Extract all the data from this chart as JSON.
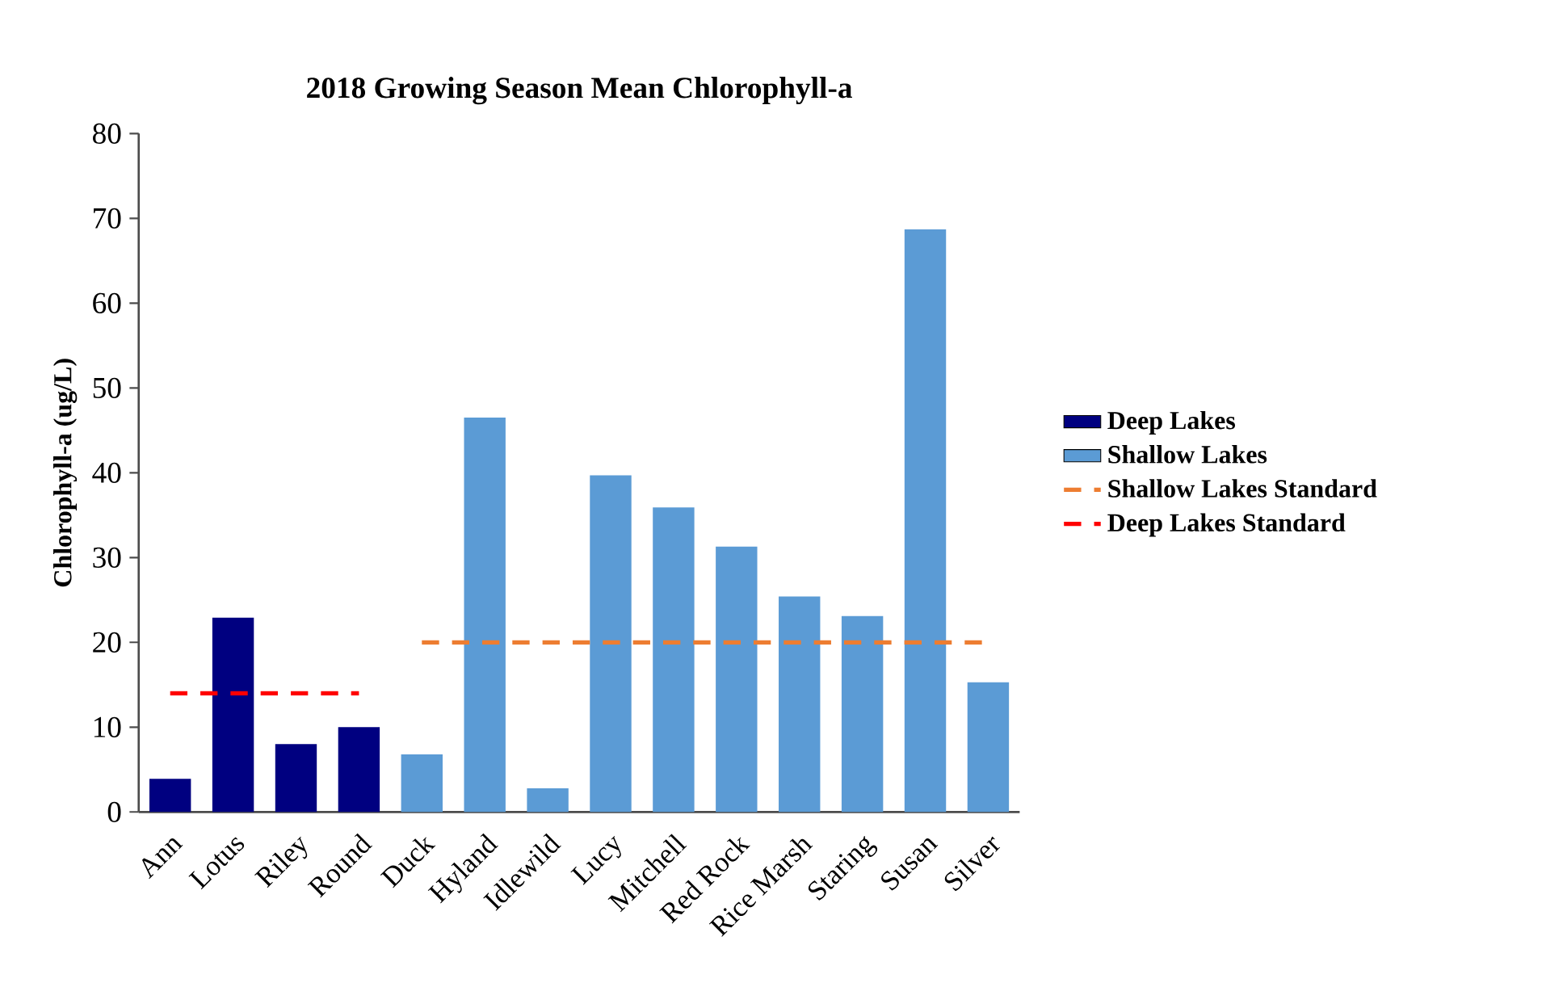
{
  "chart_data": {
    "type": "bar",
    "title": "2018 Growing Season Mean Chlorophyll-a",
    "ylabel": "Chlorophyll-a  (ug/L)",
    "categories": [
      "Ann",
      "Lotus",
      "Riley",
      "Round",
      "Duck",
      "Hyland",
      "Idlewild",
      "Lucy",
      "Mitchell",
      "Red Rock",
      "Rice Marsh",
      "Staring",
      "Susan",
      "Silver"
    ],
    "series": [
      {
        "name": "Deep Lakes",
        "color": "#000080",
        "values": [
          3.9,
          22.9,
          8.0,
          10.0,
          null,
          null,
          null,
          null,
          null,
          null,
          null,
          null,
          null,
          null
        ]
      },
      {
        "name": "Shallow Lakes",
        "color": "#5b9bd5",
        "values": [
          null,
          null,
          null,
          null,
          6.8,
          46.5,
          2.8,
          39.7,
          35.9,
          31.3,
          25.4,
          23.1,
          68.7,
          15.3
        ]
      },
      {
        "name": "Shallow Lakes Standard",
        "type": "line",
        "color": "#ed7d31",
        "line_style": "dashed",
        "values": [
          null,
          null,
          null,
          null,
          20,
          20,
          20,
          20,
          20,
          20,
          20,
          20,
          20,
          20
        ]
      },
      {
        "name": "Deep Lakes Standard",
        "type": "line",
        "color": "#ff0000",
        "line_style": "dashed",
        "values": [
          14,
          14,
          14,
          14,
          null,
          null,
          null,
          null,
          null,
          null,
          null,
          null,
          null,
          null
        ]
      }
    ],
    "ylim": [
      0,
      80
    ],
    "yticks": [
      0,
      10,
      20,
      30,
      40,
      50,
      60,
      70,
      80
    ],
    "grid": false,
    "legend": "right",
    "marker": "none"
  }
}
